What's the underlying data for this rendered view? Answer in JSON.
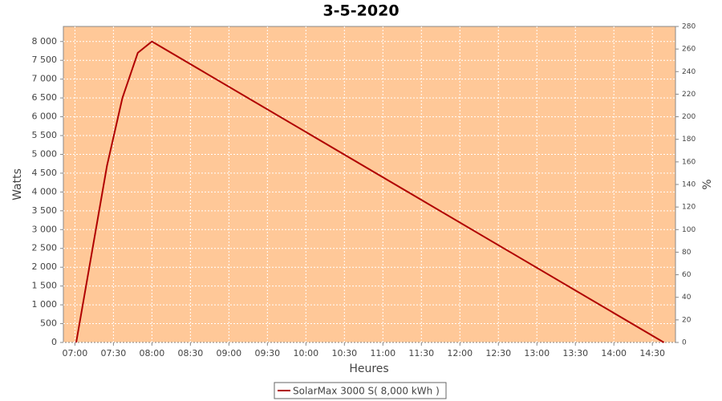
{
  "chart_data": {
    "type": "line",
    "title": "3-5-2020",
    "x_label": "Heures",
    "y_label": "Watts",
    "y2_label": "%",
    "x": [
      "07:01",
      "07:25",
      "07:37",
      "07:49",
      "08:00",
      "14:39"
    ],
    "series": [
      {
        "name": "SolarMax 3000 S( 8,000 kWh )",
        "color": "#b00000",
        "values": [
          0,
          4700,
          6500,
          7700,
          8000,
          0
        ]
      }
    ],
    "xlim": [
      "06:51",
      "14:48"
    ],
    "xticks": [
      "07:00",
      "07:30",
      "08:00",
      "08:30",
      "09:00",
      "09:30",
      "10:00",
      "10:30",
      "11:00",
      "11:30",
      "12:00",
      "12:30",
      "13:00",
      "13:30",
      "14:00",
      "14:30"
    ],
    "ylim": [
      0,
      8400
    ],
    "yticks": [
      0,
      500,
      {
        "value": 1000,
        "label": "1 000"
      },
      {
        "value": 1500,
        "label": "1 500"
      },
      {
        "value": 2000,
        "label": "2 000"
      },
      {
        "value": 2500,
        "label": "2 500"
      },
      {
        "value": 3000,
        "label": "3 000"
      },
      {
        "value": 3500,
        "label": "3 500"
      },
      {
        "value": 4000,
        "label": "4 000"
      },
      {
        "value": 4500,
        "label": "4 500"
      },
      {
        "value": 5000,
        "label": "5 000"
      },
      {
        "value": 5500,
        "label": "5 500"
      },
      {
        "value": 6000,
        "label": "6 000"
      },
      {
        "value": 6500,
        "label": "6 500"
      },
      {
        "value": 7000,
        "label": "7 000"
      },
      {
        "value": 7500,
        "label": "7 500"
      },
      {
        "value": 8000,
        "label": "8 000"
      }
    ],
    "y2lim": [
      0,
      280
    ],
    "y2ticks": [
      0,
      20,
      40,
      60,
      80,
      100,
      120,
      140,
      160,
      180,
      200,
      220,
      240,
      260,
      280
    ],
    "grid": true,
    "background": "#ffc898",
    "legend": "bottom"
  }
}
